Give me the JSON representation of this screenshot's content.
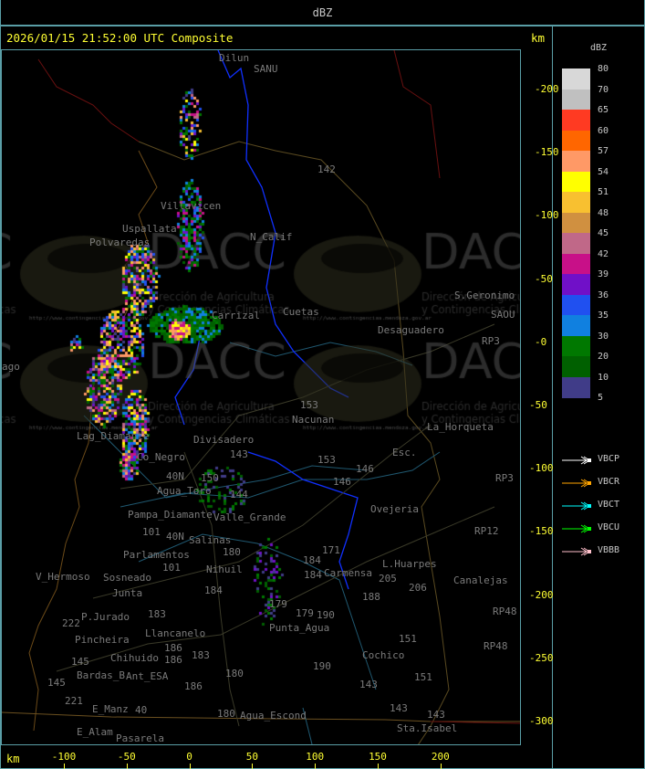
{
  "header": {
    "title": "dBZ"
  },
  "main": {
    "title": "2026/01/15 21:52:00 UTC Composite",
    "unit_top": "km",
    "unit_bottom": "km",
    "y_ticks": [
      "200",
      "150",
      "100",
      "50",
      "0",
      "-50",
      "-100",
      "-150",
      "-200",
      "-250",
      "-300"
    ],
    "x_ticks": [
      "-100",
      "-50",
      "0",
      "50",
      "100",
      "150",
      "200"
    ]
  },
  "legend": {
    "title": "dBZ",
    "levels": [
      {
        "label": "80",
        "color": "#d8d8d8"
      },
      {
        "label": "70",
        "color": "#c0c0c0"
      },
      {
        "label": "65",
        "color": "#ff3a22"
      },
      {
        "label": "60",
        "color": "#ff6600"
      },
      {
        "label": "57",
        "color": "#ff9966"
      },
      {
        "label": "54",
        "color": "#ffff00"
      },
      {
        "label": "51",
        "color": "#f8c030"
      },
      {
        "label": "48",
        "color": "#d09040"
      },
      {
        "label": "45",
        "color": "#c06888"
      },
      {
        "label": "42",
        "color": "#c81088"
      },
      {
        "label": "39",
        "color": "#7010c8"
      },
      {
        "label": "36",
        "color": "#2050f0"
      },
      {
        "label": "35",
        "color": "#1080e0"
      },
      {
        "label": "30",
        "color": "#007800"
      },
      {
        "label": "20",
        "color": "#006000"
      },
      {
        "label": "10",
        "color": "#403c88"
      },
      {
        "label": "5",
        "color": null
      }
    ],
    "radars": [
      {
        "name": "VBCP",
        "color": "#ffffff"
      },
      {
        "name": "VBCR",
        "color": "#ffa500"
      },
      {
        "name": "VBCT",
        "color": "#00ffff"
      },
      {
        "name": "VBCU",
        "color": "#00ff00"
      },
      {
        "name": "VBBB",
        "color": "#ffc0cb"
      }
    ]
  },
  "map": {
    "watermark": {
      "logo": "DACC",
      "line1": "Dirección de Agricultura",
      "line2": "y Contingencias Climáticas",
      "url": "http://www.contingencias.mendoza.gov.ar"
    },
    "places": [
      "Dilun",
      "SANU",
      "Villavicen",
      "Uspallata",
      "Polvaredas",
      "N_Calif",
      "Carrizal",
      "Cuetas",
      "Desaguadero",
      "S.Geronimo",
      "SAOU",
      "Nacunan",
      "La_Horqueta",
      "Esc.",
      "Divisadero",
      "Lag_Diamante",
      "Co_Negro",
      "Agua_Toro",
      "Pampa_Diamante",
      "Salinas",
      "Parlamentos",
      "Sosneado",
      "Nihuil",
      "V_Hermoso",
      "Junta",
      "P.Jurado",
      "Pincheira",
      "Llancanelo",
      "Chihuido",
      "Ant_ESA",
      "Bardas_B",
      "E_Manz",
      "E_Alam",
      "Pasarela",
      "Agua_Escond",
      "Punta_Agua",
      "Valle_Grande",
      "Carmensa",
      "L.Huarpes",
      "Ovejeria",
      "Canalejas",
      "Cochico",
      "Sta.Isabel",
      "ago",
      "RP3",
      "RP3",
      "RP12",
      "RP48",
      "RP48",
      "142",
      "153",
      "153",
      "146",
      "146",
      "143",
      "150",
      "144",
      "180",
      "184",
      "184",
      "179",
      "179",
      "190",
      "184",
      "183",
      "186",
      "186",
      "183",
      "180",
      "186",
      "180",
      "145",
      "145",
      "40",
      "40N",
      "40N",
      "101",
      "101",
      "222",
      "221",
      "205",
      "206",
      "188",
      "151",
      "151",
      "143",
      "143",
      "143",
      "171",
      "190"
    ],
    "radar_colors": [
      "#007800",
      "#006000",
      "#1080e0",
      "#2050f0",
      "#7010c8",
      "#c81088",
      "#c06888",
      "#ffff00",
      "#f8c030",
      "#ff9966",
      "#403c88"
    ]
  }
}
